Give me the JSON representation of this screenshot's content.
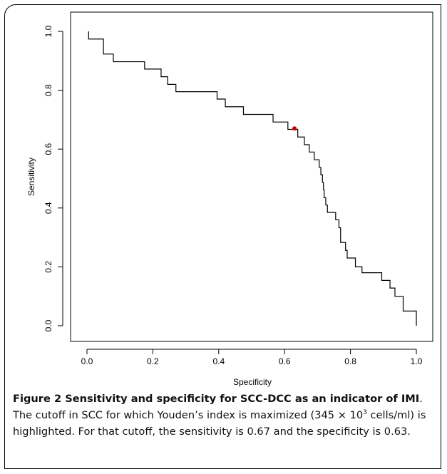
{
  "chart_data": {
    "type": "line",
    "xlabel": "Specificity",
    "ylabel": "Sensitivity",
    "xlim": [
      0.0,
      1.0
    ],
    "ylim": [
      0.0,
      1.0
    ],
    "xticks": [
      "0.0",
      "0.2",
      "0.4",
      "0.6",
      "0.8",
      "1.0"
    ],
    "yticks": [
      "0.0",
      "0.2",
      "0.4",
      "0.6",
      "0.8",
      "1.0"
    ],
    "grid": false,
    "series": [
      {
        "points": [
          [
            1.0,
            0.0
          ],
          [
            1.0,
            0.05
          ],
          [
            0.96,
            0.05
          ],
          [
            0.96,
            0.1
          ],
          [
            0.935,
            0.1
          ],
          [
            0.935,
            0.128
          ],
          [
            0.92,
            0.128
          ],
          [
            0.92,
            0.154
          ],
          [
            0.895,
            0.154
          ],
          [
            0.895,
            0.18
          ],
          [
            0.835,
            0.18
          ],
          [
            0.835,
            0.2
          ],
          [
            0.815,
            0.2
          ],
          [
            0.815,
            0.23
          ],
          [
            0.79,
            0.23
          ],
          [
            0.79,
            0.256
          ],
          [
            0.785,
            0.256
          ],
          [
            0.785,
            0.283
          ],
          [
            0.77,
            0.283
          ],
          [
            0.77,
            0.333
          ],
          [
            0.765,
            0.333
          ],
          [
            0.765,
            0.36
          ],
          [
            0.755,
            0.36
          ],
          [
            0.755,
            0.385
          ],
          [
            0.73,
            0.385
          ],
          [
            0.73,
            0.41
          ],
          [
            0.725,
            0.41
          ],
          [
            0.725,
            0.435
          ],
          [
            0.72,
            0.435
          ],
          [
            0.72,
            0.462
          ],
          [
            0.718,
            0.462
          ],
          [
            0.718,
            0.487
          ],
          [
            0.715,
            0.487
          ],
          [
            0.715,
            0.513
          ],
          [
            0.71,
            0.513
          ],
          [
            0.71,
            0.538
          ],
          [
            0.705,
            0.538
          ],
          [
            0.705,
            0.564
          ],
          [
            0.69,
            0.564
          ],
          [
            0.69,
            0.59
          ],
          [
            0.675,
            0.59
          ],
          [
            0.675,
            0.615
          ],
          [
            0.66,
            0.615
          ],
          [
            0.66,
            0.641
          ],
          [
            0.64,
            0.641
          ],
          [
            0.64,
            0.667
          ],
          [
            0.61,
            0.667
          ],
          [
            0.61,
            0.692
          ],
          [
            0.565,
            0.692
          ],
          [
            0.565,
            0.718
          ],
          [
            0.475,
            0.718
          ],
          [
            0.475,
            0.744
          ],
          [
            0.42,
            0.744
          ],
          [
            0.42,
            0.77
          ],
          [
            0.395,
            0.77
          ],
          [
            0.395,
            0.795
          ],
          [
            0.27,
            0.795
          ],
          [
            0.27,
            0.82
          ],
          [
            0.245,
            0.82
          ],
          [
            0.245,
            0.846
          ],
          [
            0.225,
            0.846
          ],
          [
            0.225,
            0.872
          ],
          [
            0.175,
            0.872
          ],
          [
            0.175,
            0.897
          ],
          [
            0.08,
            0.897
          ],
          [
            0.08,
            0.923
          ],
          [
            0.05,
            0.923
          ],
          [
            0.05,
            0.974
          ],
          [
            0.005,
            0.974
          ],
          [
            0.005,
            1.0
          ]
        ]
      }
    ],
    "highlight": {
      "x": 0.63,
      "y": 0.67,
      "color": "#cc0000"
    },
    "line_color": "#000000"
  },
  "caption": {
    "title": "Figure 2 Sensitivity and specificity for SCC-DCC as an indicator of IMI",
    "text_part1": ". The cutoff in SCC for which Youden’s index is maximized (345 × 10",
    "superscript": "3",
    "text_part2": " cells/ml) is highlighted. For that cutoff, the sensitivity is 0.67 and the specificity is 0.63."
  }
}
